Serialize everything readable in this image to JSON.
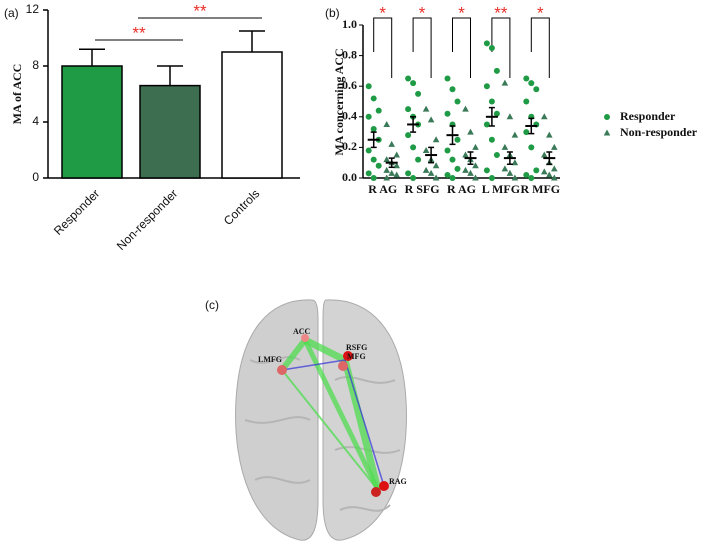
{
  "chart_data": [
    {
      "type": "bar",
      "panel_label": "(a)",
      "y_label": "MA of ACC",
      "categories": [
        "Responder",
        "Non-responder",
        "Controls"
      ],
      "values": [
        8.0,
        6.6,
        9.0
      ],
      "errors": [
        1.2,
        1.4,
        1.5
      ],
      "colors": [
        "#1f9a45",
        "#3d6e4f",
        "#ffffff"
      ],
      "ylim": [
        0,
        12
      ],
      "yticks": [
        0,
        4,
        8,
        12
      ],
      "annotations": [
        "**",
        "**"
      ]
    },
    {
      "type": "dotplot",
      "panel_label": "(b)",
      "y_label": "MA concerning  ACC",
      "categories": [
        "R AG",
        "R SFG",
        "R AG",
        "L MFG",
        "R MFG"
      ],
      "ylim": [
        0,
        1.0
      ],
      "yticks": [
        {
          "value": 0,
          "label": "0.0"
        },
        0.2,
        0.4,
        0.6,
        0.8,
        {
          "value": 1.0,
          "label": "1.0"
        }
      ],
      "annotations": [
        "*",
        "*",
        "*",
        "**",
        "*"
      ],
      "series": [
        {
          "name": "Responder",
          "color": "#1f9a45",
          "marker": "circle",
          "values": [
            0.25,
            0.35,
            0.28,
            0.4,
            0.34
          ],
          "errors": [
            0.05,
            0.05,
            0.06,
            0.06,
            0.05
          ],
          "points": [
            [
              0.6,
              0.52,
              0.44,
              0.4,
              0.32,
              0.25,
              0.18,
              0.12,
              0.08,
              0.03,
              0.0
            ],
            [
              0.65,
              0.62,
              0.55,
              0.45,
              0.4,
              0.35,
              0.28,
              0.2,
              0.12,
              0.03,
              0.0
            ],
            [
              0.65,
              0.58,
              0.5,
              0.42,
              0.35,
              0.25,
              0.18,
              0.12,
              0.06,
              0.02,
              0.0
            ],
            [
              0.88,
              0.85,
              0.7,
              0.6,
              0.5,
              0.42,
              0.35,
              0.25,
              0.15,
              0.05,
              0.0
            ],
            [
              0.65,
              0.62,
              0.58,
              0.5,
              0.4,
              0.35,
              0.3,
              0.2,
              0.05,
              0.02,
              0.0
            ]
          ]
        },
        {
          "name": "Non-responder",
          "color": "#3a7a58",
          "marker": "triangle",
          "values": [
            0.1,
            0.15,
            0.13,
            0.13,
            0.13
          ],
          "errors": [
            0.03,
            0.05,
            0.04,
            0.04,
            0.04
          ],
          "points": [
            [
              0.35,
              0.22,
              0.15,
              0.12,
              0.1,
              0.08,
              0.05,
              0.03,
              0.02,
              0.0
            ],
            [
              0.45,
              0.38,
              0.25,
              0.18,
              0.12,
              0.08,
              0.05,
              0.03,
              0.0
            ],
            [
              0.45,
              0.3,
              0.2,
              0.15,
              0.12,
              0.08,
              0.05,
              0.03,
              0.0
            ],
            [
              0.62,
              0.4,
              0.28,
              0.2,
              0.15,
              0.1,
              0.06,
              0.03,
              0.0
            ],
            [
              0.4,
              0.28,
              0.2,
              0.15,
              0.1,
              0.06,
              0.04,
              0.02,
              0.0
            ]
          ]
        }
      ]
    }
  ],
  "brain": {
    "panel_label": "(c)",
    "nodes": [
      {
        "label": "ACC"
      },
      {
        "label": "RSFG"
      },
      {
        "label": "MFG"
      },
      {
        "label": "LMFG"
      },
      {
        "label": "RAG"
      }
    ]
  }
}
